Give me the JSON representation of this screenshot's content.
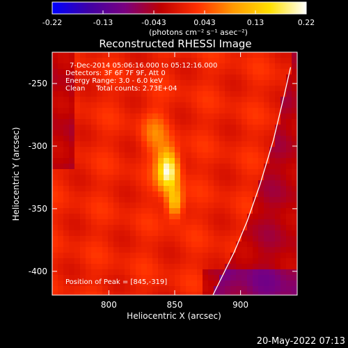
{
  "chart_data": {
    "type": "heatmap",
    "title": "Reconstructed RHESSI Image",
    "xlabel": "Heliocentric X (arcsec)",
    "ylabel": "Heliocentric Y (arcsec)",
    "xlim": [
      757,
      943
    ],
    "ylim": [
      -419,
      -225
    ],
    "x_ticks": [
      800,
      850,
      900
    ],
    "y_ticks": [
      -250,
      -300,
      -350,
      -400
    ],
    "colorbar": {
      "min": -0.22,
      "max": 0.22,
      "ticks": [
        "-0.22",
        "-0.13",
        "-0.043",
        "0.043",
        "0.13",
        "0.22"
      ],
      "label": "(photons cm⁻² s⁻¹ asec⁻²)",
      "colors": [
        "#0000ff",
        "#3f00a6",
        "#7a0080",
        "#c00000",
        "#ff3000",
        "#ff9a00",
        "#ffe000",
        "#ffffff"
      ]
    },
    "peak": {
      "x": 845,
      "y": -319,
      "value": 0.22
    },
    "limb_points": [
      [
        879,
        -419
      ],
      [
        895,
        -385
      ],
      [
        905,
        -360
      ],
      [
        915,
        -330
      ],
      [
        925,
        -295
      ],
      [
        933,
        -260
      ],
      [
        938,
        -237
      ]
    ],
    "annotations": [
      "7-Dec-2014 05:06:16.000 to 05:12:16.000",
      "Detectors: 3F 6F 7F 9F, Att 0",
      "Energy Range: 3.0 - 6.0 keV",
      "Clean     Total counts: 2.73E+04"
    ],
    "peak_label": "Position of Peak = [845,-319]",
    "timestamp": "20-May-2022 07:13"
  }
}
